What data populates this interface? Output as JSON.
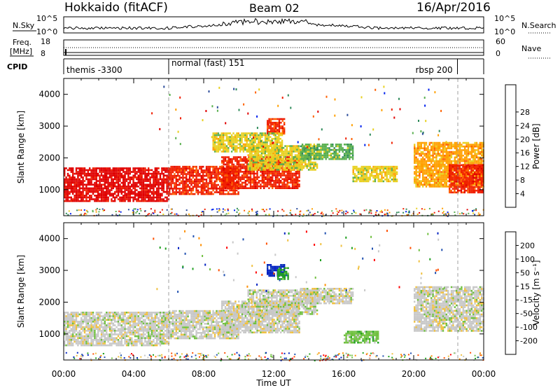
{
  "header": {
    "station": "Hokkaido (fitACF)",
    "beam": "Beam 02",
    "date": "16/Apr/2016"
  },
  "strip_labels": {
    "nsky": "N.Sky",
    "nsky_top": "10^5",
    "nsky_bottom": "10^0",
    "freq_line1": "Freq.",
    "freq_line2": "[MHz]",
    "freq_top": "18",
    "freq_bottom": "8",
    "cpid": "CPID",
    "nsearch": "N.Search",
    "nsearch_top": "10^5",
    "nsearch_bottom": "10^0",
    "nave": "Nave",
    "nave_top": "60",
    "nave_bottom": "0"
  },
  "cpid_segments": [
    {
      "start_hour": 0.0,
      "label": "themis -3300"
    },
    {
      "start_hour": 6.0,
      "label": "normal (fast) 151"
    },
    {
      "start_hour": 22.5,
      "label": "rbsp 200"
    }
  ],
  "colors": {
    "power": [
      "#0022ee",
      "#2a4a9a",
      "#2e8a5a",
      "#5ab050",
      "#e8d020",
      "#ffa000",
      "#ff6000",
      "#f02000",
      "#e00000"
    ],
    "velocity": [
      "#ff0000",
      "#ff5000",
      "#ff9000",
      "#f0c040",
      "#c8c8c8",
      "#70c040",
      "#20a020",
      "#2050b0",
      "#0020c0"
    ]
  },
  "chart_data": [
    {
      "type": "heatmap",
      "name": "power",
      "xlabel": "",
      "ylabel": "Slant Range [km]",
      "xlim": [
        0,
        24
      ],
      "ylim": [
        180,
        4500
      ],
      "yticks": [
        1000,
        2000,
        3000,
        4000
      ],
      "colorbar_label": "Power [dB]",
      "colorbar_ticks": [
        "4",
        "8",
        "12",
        "16",
        "20",
        "24",
        "28"
      ],
      "regions": [
        {
          "t0": 0.0,
          "t1": 6.0,
          "r0": 650,
          "r1": 1700,
          "level": 8
        },
        {
          "t0": 6.0,
          "t1": 10.0,
          "r0": 850,
          "r1": 1750,
          "level": 7
        },
        {
          "t0": 9.0,
          "t1": 13.5,
          "r0": 1050,
          "r1": 2050,
          "level": 7
        },
        {
          "t0": 11.6,
          "t1": 12.6,
          "r0": 2750,
          "r1": 3250,
          "level": 7
        },
        {
          "t0": 10.5,
          "t1": 14.5,
          "r0": 1600,
          "r1": 2400,
          "level": 4
        },
        {
          "t0": 13.5,
          "t1": 16.5,
          "r0": 1950,
          "r1": 2450,
          "level": 3
        },
        {
          "t0": 8.5,
          "t1": 12.5,
          "r0": 2200,
          "r1": 2800,
          "level": 4
        },
        {
          "t0": 16.5,
          "t1": 19.0,
          "r0": 1250,
          "r1": 1750,
          "level": 4
        },
        {
          "t0": 20.0,
          "t1": 24.0,
          "r0": 1100,
          "r1": 2500,
          "level": 5
        },
        {
          "t0": 22.0,
          "t1": 24.0,
          "r0": 900,
          "r1": 1800,
          "level": 7
        }
      ]
    },
    {
      "type": "heatmap",
      "name": "velocity",
      "xlabel": "Time UT",
      "ylabel": "Slant Range [km]",
      "xlim": [
        0,
        24
      ],
      "ylim": [
        180,
        4500
      ],
      "yticks": [
        1000,
        2000,
        3000,
        4000
      ],
      "xtick_labels": [
        "00:00",
        "04:00",
        "08:00",
        "12:00",
        "16:00",
        "20:00",
        "00:00"
      ],
      "colorbar_label": "Velocity [m s⁻¹]",
      "colorbar_ticks": [
        "200",
        "100",
        "50",
        "15",
        "-15",
        "-50",
        "-100",
        "-200"
      ],
      "regions": [
        {
          "t0": 0.0,
          "t1": 6.0,
          "r0": 650,
          "r1": 1700,
          "level": 4
        },
        {
          "t0": 6.0,
          "t1": 10.0,
          "r0": 850,
          "r1": 1750,
          "level": 4
        },
        {
          "t0": 9.0,
          "t1": 13.5,
          "r0": 1050,
          "r1": 2050,
          "level": 4
        },
        {
          "t0": 11.6,
          "t1": 12.6,
          "r0": 2800,
          "r1": 3200,
          "level": 8
        },
        {
          "t0": 12.2,
          "t1": 12.8,
          "r0": 2750,
          "r1": 3100,
          "level": 6
        },
        {
          "t0": 10.5,
          "t1": 14.5,
          "r0": 1600,
          "r1": 2400,
          "level": 4
        },
        {
          "t0": 13.5,
          "t1": 16.5,
          "r0": 1950,
          "r1": 2450,
          "level": 4
        },
        {
          "t0": 16.0,
          "t1": 18.0,
          "r0": 700,
          "r1": 1100,
          "level": 5
        },
        {
          "t0": 20.0,
          "t1": 24.0,
          "r0": 1100,
          "r1": 2500,
          "level": 4
        }
      ]
    }
  ]
}
